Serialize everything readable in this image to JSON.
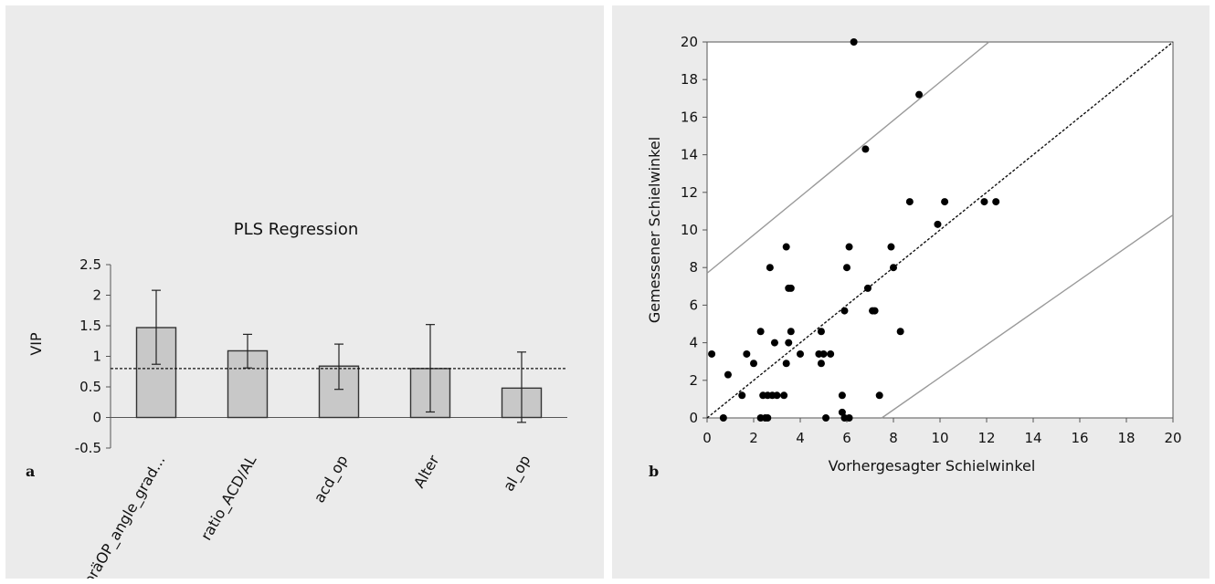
{
  "chart_data": [
    {
      "panel_label": "a",
      "type": "bar",
      "title": "PLS Regression",
      "ylabel": "VIP",
      "xlabel": "",
      "ylim": [
        -0.5,
        2.5
      ],
      "yticks": [
        -0.5,
        0,
        0.5,
        1,
        1.5,
        2,
        2.5
      ],
      "ytick_labels": [
        "-0.5",
        "0",
        "0.5",
        "1",
        "1.5",
        "2",
        "2.5"
      ],
      "categories": [
        "präOP_angle_grad...",
        "ratio_ACD/AL",
        "acd_op",
        "Alter",
        "al_op"
      ],
      "values": [
        1.47,
        1.09,
        0.84,
        0.8,
        0.48
      ],
      "error_low": [
        0.87,
        0.81,
        0.46,
        0.09,
        -0.08
      ],
      "error_high": [
        2.08,
        1.36,
        1.2,
        1.52,
        1.07
      ],
      "reference_line": 0.8,
      "bar_color": "#c8c8c8",
      "grid": false
    },
    {
      "panel_label": "b",
      "type": "scatter",
      "title": "",
      "xlabel": "Vorhergesagter  Schielwinkel",
      "ylabel": "Gemessener  Schielwinkel",
      "xlim": [
        0,
        20
      ],
      "ylim": [
        0,
        20
      ],
      "xticks": [
        0,
        2,
        4,
        6,
        8,
        10,
        12,
        14,
        16,
        18,
        20
      ],
      "xtick_labels": [
        "0",
        "2",
        "4",
        "6",
        "8",
        "10",
        "12",
        "14",
        "16",
        "18",
        "20"
      ],
      "yticks": [
        0,
        2,
        4,
        6,
        8,
        10,
        12,
        14,
        16,
        18,
        20
      ],
      "ytick_labels": [
        "0",
        "2",
        "4",
        "6",
        "8",
        "10",
        "12",
        "14",
        "16",
        "18",
        "20"
      ],
      "points": [
        [
          0.2,
          3.4
        ],
        [
          0.7,
          0.0
        ],
        [
          0.9,
          2.3
        ],
        [
          1.5,
          1.2
        ],
        [
          1.7,
          3.4
        ],
        [
          2.0,
          2.9
        ],
        [
          2.3,
          0.0
        ],
        [
          2.3,
          4.6
        ],
        [
          2.4,
          1.2
        ],
        [
          2.5,
          0.0
        ],
        [
          2.6,
          0.0
        ],
        [
          2.6,
          1.2
        ],
        [
          2.7,
          8.0
        ],
        [
          2.8,
          1.2
        ],
        [
          2.9,
          4.0
        ],
        [
          3.0,
          1.2
        ],
        [
          3.3,
          1.2
        ],
        [
          3.4,
          2.9
        ],
        [
          3.4,
          9.1
        ],
        [
          3.5,
          6.9
        ],
        [
          3.5,
          4.0
        ],
        [
          3.6,
          6.9
        ],
        [
          3.6,
          4.6
        ],
        [
          4.0,
          3.4
        ],
        [
          4.8,
          3.4
        ],
        [
          4.9,
          4.6
        ],
        [
          4.9,
          2.9
        ],
        [
          5.0,
          3.4
        ],
        [
          5.1,
          0.0
        ],
        [
          5.3,
          3.4
        ],
        [
          5.8,
          0.3
        ],
        [
          5.8,
          1.2
        ],
        [
          5.9,
          5.7
        ],
        [
          5.9,
          0.0
        ],
        [
          6.0,
          8.0
        ],
        [
          6.1,
          0.0
        ],
        [
          6.1,
          9.1
        ],
        [
          6.3,
          20.0
        ],
        [
          6.8,
          14.3
        ],
        [
          6.9,
          6.9
        ],
        [
          7.1,
          5.7
        ],
        [
          7.2,
          5.7
        ],
        [
          7.4,
          1.2
        ],
        [
          7.9,
          9.1
        ],
        [
          8.0,
          8.0
        ],
        [
          8.3,
          4.6
        ],
        [
          8.7,
          11.5
        ],
        [
          9.1,
          17.2
        ],
        [
          9.9,
          10.3
        ],
        [
          10.2,
          11.5
        ],
        [
          11.9,
          11.5
        ],
        [
          12.4,
          11.5
        ]
      ],
      "identity_line": [
        [
          0,
          0
        ],
        [
          20,
          20
        ]
      ],
      "upper_bound_line": [
        [
          0,
          7.7
        ],
        [
          12.1,
          20.0
        ]
      ],
      "lower_bound_line": [
        [
          7.5,
          0.0
        ],
        [
          20.0,
          10.8
        ]
      ],
      "point_color": "#000000",
      "bound_color": "#9a9a9a",
      "grid": false
    }
  ]
}
